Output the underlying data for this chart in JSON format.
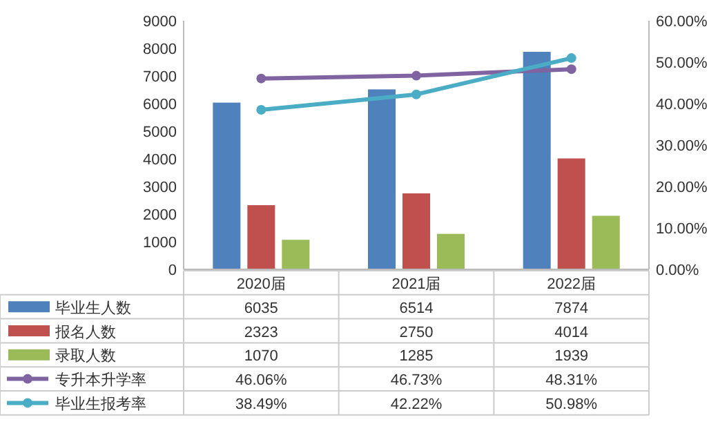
{
  "chart_data": {
    "type": "bar",
    "categories": [
      "2020届",
      "2021届",
      "2022届"
    ],
    "series": [
      {
        "name": "毕业生人数",
        "color": "#4f81bd",
        "values": [
          6035,
          6514,
          7874
        ],
        "value_labels": [
          "6035",
          "6514",
          "7874"
        ]
      },
      {
        "name": "报名人数",
        "color": "#c0504d",
        "values": [
          2323,
          2750,
          4014
        ],
        "value_labels": [
          "2323",
          "2750",
          "4014"
        ]
      },
      {
        "name": "录取人数",
        "color": "#9bbb59",
        "values": [
          1070,
          1285,
          1939
        ],
        "value_labels": [
          "1070",
          "1285",
          "1939"
        ]
      },
      {
        "name": "专升本升学率",
        "type": "line",
        "axis": "y2",
        "color": "#8064a2",
        "values": [
          46.06,
          46.73,
          48.31
        ],
        "value_labels": [
          "46.06%",
          "46.73%",
          "48.31%"
        ]
      },
      {
        "name": "毕业生报考率",
        "type": "line",
        "axis": "y2",
        "color": "#4bacc6",
        "values": [
          38.49,
          42.22,
          50.98
        ],
        "value_labels": [
          "38.49%",
          "42.22%",
          "50.98%"
        ]
      }
    ],
    "ylim": [
      0,
      9000
    ],
    "yticks": [
      0,
      1000,
      2000,
      3000,
      4000,
      5000,
      6000,
      7000,
      8000,
      9000
    ],
    "y2lim": [
      0,
      60
    ],
    "y2ticks": [
      {
        "value": 0,
        "label": "0.00%"
      },
      {
        "value": 10,
        "label": "10.00%"
      },
      {
        "value": 20,
        "label": "20.00%"
      },
      {
        "value": 30,
        "label": "30.00%"
      },
      {
        "value": 40,
        "label": "40.00%"
      },
      {
        "value": 50,
        "label": "50.00%"
      },
      {
        "value": 60,
        "label": "60.00%"
      }
    ],
    "marker": "circle",
    "legend": "bottom",
    "grid": false
  }
}
